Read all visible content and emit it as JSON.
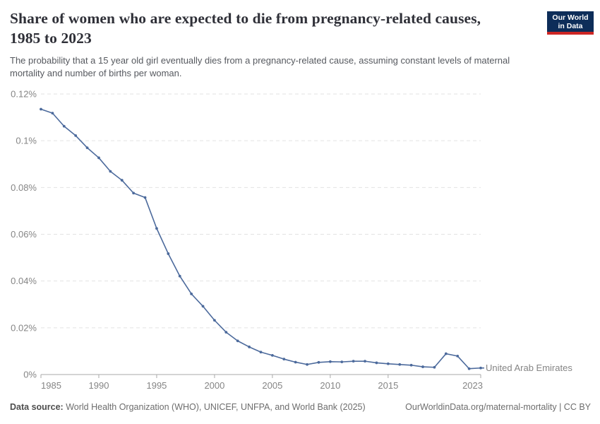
{
  "header": {
    "title": "Share of women who are expected to die from pregnancy-related causes, 1985 to 2023",
    "subtitle": "The probability that a 15 year old girl eventually dies from a pregnancy-related cause, assuming constant levels of maternal mortality and number of births per woman.",
    "logo": {
      "line1": "Our World",
      "line2": "in Data",
      "bg_color": "#0d2d59",
      "stripe_color": "#cd2624"
    }
  },
  "chart_data": {
    "type": "line",
    "title": "Share of women who are expected to die from pregnancy-related causes, 1985 to 2023",
    "xlabel": "",
    "ylabel": "",
    "xlim": [
      1985,
      2023
    ],
    "ylim": [
      0,
      0.12
    ],
    "grid": "horizontal-dashed",
    "legend_position": "end-of-line",
    "xticks": [
      1985,
      1990,
      1995,
      2000,
      2005,
      2010,
      2015,
      2023
    ],
    "yticks": [
      {
        "value": 0,
        "label": "0%"
      },
      {
        "value": 0.02,
        "label": "0.02%"
      },
      {
        "value": 0.04,
        "label": "0.04%"
      },
      {
        "value": 0.06,
        "label": "0.06%"
      },
      {
        "value": 0.08,
        "label": "0.08%"
      },
      {
        "value": 0.1,
        "label": "0.1%"
      },
      {
        "value": 0.12,
        "label": "0.12%"
      }
    ],
    "unit": "%",
    "series": [
      {
        "name": "United Arab Emirates",
        "color": "#4c6a9c",
        "x": [
          1985,
          1986,
          1987,
          1988,
          1989,
          1990,
          1991,
          1992,
          1993,
          1994,
          1995,
          1996,
          1997,
          1998,
          1999,
          2000,
          2001,
          2002,
          2003,
          2004,
          2005,
          2006,
          2007,
          2008,
          2009,
          2010,
          2011,
          2012,
          2013,
          2014,
          2015,
          2016,
          2017,
          2018,
          2019,
          2020,
          2021,
          2022,
          2023
        ],
        "values": [
          0.1135,
          0.1118,
          0.1062,
          0.1022,
          0.097,
          0.0927,
          0.0869,
          0.0831,
          0.0776,
          0.0757,
          0.0625,
          0.0517,
          0.0421,
          0.0345,
          0.0292,
          0.0232,
          0.0181,
          0.0144,
          0.0118,
          0.0096,
          0.0082,
          0.0066,
          0.0053,
          0.0043,
          0.0052,
          0.0055,
          0.0054,
          0.0057,
          0.0057,
          0.005,
          0.0046,
          0.0043,
          0.004,
          0.0033,
          0.0031,
          0.0089,
          0.0079,
          0.0025,
          0.0028
        ]
      }
    ],
    "colors": {
      "gridline": "#e2e2e2",
      "axis": "#a9a9a9",
      "tick_label": "#858585"
    }
  },
  "footer": {
    "datasource_label": "Data source:",
    "datasource_text": " World Health Organization (WHO), UNICEF, UNFPA, and World Bank (2025)",
    "link_text": "OurWorldinData.org/maternal-mortality | CC BY"
  }
}
